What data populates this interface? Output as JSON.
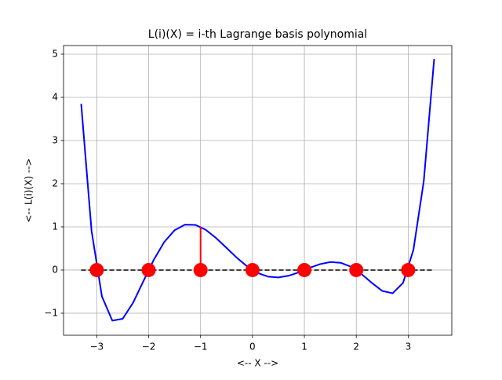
{
  "chart_data": {
    "type": "line",
    "title": "L(i)(X) = i-th Lagrange basis polynomial",
    "xlabel": "<-- X -->",
    "ylabel": "<-- L(i)(X) -->",
    "xlim": [
      -3.64,
      3.84
    ],
    "ylim": [
      -1.51,
      5.2
    ],
    "xticks": [
      {
        "value": -3,
        "label": "−3"
      },
      {
        "value": -2,
        "label": "−2"
      },
      {
        "value": -1,
        "label": "−1"
      },
      0,
      1,
      2,
      3
    ],
    "yticks": [
      {
        "value": -1,
        "label": "−1"
      },
      0,
      1,
      2,
      3,
      4,
      5
    ],
    "grid": true,
    "series": [
      {
        "style": "solid",
        "color": "#0000ff",
        "x": [
          -3.3,
          -3.1,
          -2.9,
          -2.7,
          -2.5,
          -2.3,
          -2.1,
          -1.9,
          -1.7,
          -1.5,
          -1.3,
          -1.1,
          -0.9,
          -0.7,
          -0.5,
          -0.3,
          -0.1,
          0.1,
          0.3,
          0.5,
          0.7,
          0.9,
          1.1,
          1.3,
          1.5,
          1.7,
          1.9,
          2.1,
          2.3,
          2.5,
          2.7,
          2.9,
          3.1,
          3.3,
          3.5
        ],
        "y": [
          3.85,
          0.906,
          -0.613,
          -1.171,
          -1.128,
          -0.757,
          -0.255,
          0.241,
          0.649,
          0.923,
          1.052,
          1.046,
          0.931,
          0.741,
          0.513,
          0.283,
          0.082,
          -0.067,
          -0.152,
          -0.171,
          -0.131,
          -0.049,
          0.05,
          0.137,
          0.185,
          0.168,
          0.075,
          -0.091,
          -0.298,
          -0.483,
          -0.538,
          -0.299,
          0.464,
          2.059,
          4.888
        ]
      },
      {
        "style": "dashed",
        "color": "#000000",
        "x": [
          -3.3,
          3.5
        ],
        "y": [
          0,
          0
        ]
      },
      {
        "style": "solid",
        "color": "#ff0000",
        "x": [
          -1,
          -1
        ],
        "y": [
          0,
          1
        ]
      },
      {
        "style": "markers",
        "color": "#ff0000",
        "x": [
          -3,
          -2,
          -1,
          0,
          1,
          2,
          3
        ],
        "y": [
          0,
          0,
          0,
          0,
          0,
          0,
          0
        ]
      }
    ]
  }
}
